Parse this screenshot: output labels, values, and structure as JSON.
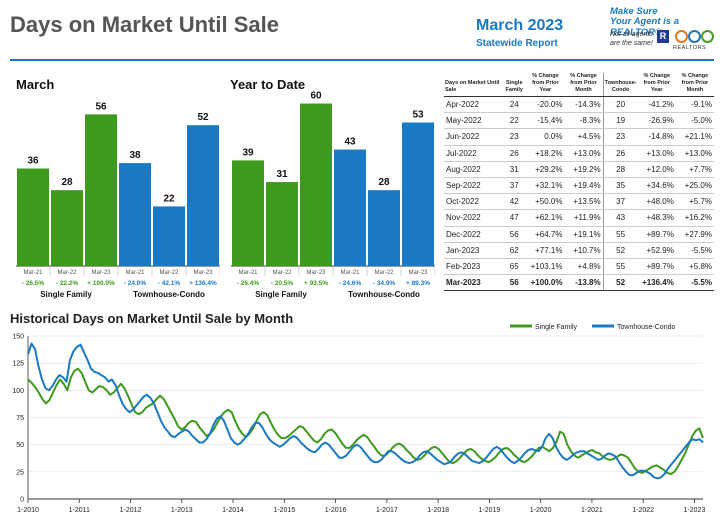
{
  "header": {
    "title": "Days on Market Until Sale",
    "month": "March 2023",
    "subtitle": "Statewide Report",
    "realtor_line1": "Make Sure",
    "realtor_line2": "Your Agent is a REALTOR®",
    "realtor_line3": "Not all agents",
    "realtor_line4": "are the same!",
    "logo_text": "REALTORS"
  },
  "sections": {
    "march": "March",
    "ytd": "Year to Date",
    "historical": "Historical Days on Market Until Sale by Month"
  },
  "colors": {
    "single_family": "#3d9a1c",
    "townhouse": "#1a79c3",
    "accent": "#1a79c3"
  },
  "chart_data": [
    {
      "type": "bar",
      "title": "March",
      "groups": [
        "Single Family",
        "Townhouse-Condo"
      ],
      "categories": [
        "Mar-21",
        "Mar-22",
        "Mar-23",
        "Mar-21",
        "Mar-22",
        "Mar-23"
      ],
      "values": [
        36,
        28,
        56,
        38,
        22,
        52
      ],
      "changes": [
        "- 26.5%",
        "- 22.2%",
        "+ 100.0%",
        "- 24.0%",
        "- 42.1%",
        "+ 136.4%"
      ],
      "ylim": [
        0,
        65
      ]
    },
    {
      "type": "bar",
      "title": "Year to Date",
      "groups": [
        "Single Family",
        "Townhouse-Condo"
      ],
      "categories": [
        "Mar-21",
        "Mar-22",
        "Mar-23",
        "Mar-21",
        "Mar-22",
        "Mar-23"
      ],
      "values": [
        39,
        31,
        60,
        43,
        28,
        53
      ],
      "changes": [
        "- 26.4%",
        "- 20.5%",
        "+ 93.5%",
        "- 24.6%",
        "- 34.9%",
        "+ 89.3%"
      ],
      "ylim": [
        0,
        65
      ]
    },
    {
      "type": "table",
      "headers": [
        "Days on Market Until Sale",
        "Single Family",
        "% Change from Prior Year",
        "% Change from Prior Month",
        "Townhouse-Condo",
        "% Change from Prior Year",
        "% Change from Prior Month"
      ],
      "rows": [
        [
          "Apr-2022",
          "24",
          "-20.0%",
          "-14.3%",
          "20",
          "-41.2%",
          "-9.1%"
        ],
        [
          "May-2022",
          "22",
          "-15.4%",
          "-8.3%",
          "19",
          "-26.9%",
          "-5.0%"
        ],
        [
          "Jun-2022",
          "23",
          "0.0%",
          "+4.5%",
          "23",
          "-14.8%",
          "+21.1%"
        ],
        [
          "Jul-2022",
          "26",
          "+18.2%",
          "+13.0%",
          "26",
          "+13.0%",
          "+13.0%"
        ],
        [
          "Aug-2022",
          "31",
          "+29.2%",
          "+19.2%",
          "28",
          "+12.0%",
          "+7.7%"
        ],
        [
          "Sep-2022",
          "37",
          "+32.1%",
          "+19.4%",
          "35",
          "+34.6%",
          "+25.0%"
        ],
        [
          "Oct-2022",
          "42",
          "+50.0%",
          "+13.5%",
          "37",
          "+48.0%",
          "+5.7%"
        ],
        [
          "Nov-2022",
          "47",
          "+62.1%",
          "+11.9%",
          "43",
          "+48.3%",
          "+16.2%"
        ],
        [
          "Dec-2022",
          "56",
          "+64.7%",
          "+19.1%",
          "55",
          "+89.7%",
          "+27.9%"
        ],
        [
          "Jan-2023",
          "62",
          "+77.1%",
          "+10.7%",
          "52",
          "+52.9%",
          "-5.5%"
        ],
        [
          "Feb-2023",
          "65",
          "+103.1%",
          "+4.8%",
          "55",
          "+89.7%",
          "+5.8%"
        ],
        [
          "Mar-2023",
          "56",
          "+100.0%",
          "-13.8%",
          "52",
          "+136.4%",
          "-5.5%"
        ]
      ]
    },
    {
      "type": "line",
      "title": "Historical Days on Market Until Sale by Month",
      "ylim": [
        0,
        150
      ],
      "yticks": [
        0,
        25,
        50,
        75,
        100,
        125,
        150
      ],
      "xticks": [
        "1-2010",
        "1-2011",
        "1-2012",
        "1-2013",
        "1-2014",
        "1-2015",
        "1-2016",
        "1-2017",
        "1-2018",
        "1-2019",
        "1-2020",
        "1-2021",
        "1-2022",
        "1-2023"
      ],
      "x_start": "1-2010",
      "legend": "top-right",
      "series": [
        {
          "name": "Single Family",
          "values": [
            110,
            107,
            103,
            98,
            92,
            88,
            91,
            98,
            105,
            110,
            106,
            100,
            112,
            118,
            120,
            116,
            108,
            100,
            98,
            101,
            104,
            103,
            100,
            96,
            98,
            102,
            106,
            102,
            95,
            87,
            80,
            78,
            80,
            84,
            86,
            88,
            92,
            95,
            92,
            86,
            80,
            74,
            67,
            64,
            66,
            70,
            72,
            71,
            66,
            62,
            58,
            60,
            64,
            70,
            76,
            80,
            82,
            80,
            72,
            65,
            60,
            57,
            60,
            65,
            72,
            78,
            80,
            77,
            70,
            64,
            59,
            56,
            56,
            58,
            61,
            64,
            67,
            66,
            62,
            58,
            54,
            52,
            55,
            60,
            63,
            64,
            61,
            56,
            51,
            47,
            47,
            50,
            54,
            57,
            59,
            57,
            52,
            48,
            43,
            40,
            40,
            43,
            47,
            50,
            51,
            49,
            45,
            42,
            38,
            36,
            37,
            40,
            44,
            47,
            48,
            46,
            42,
            38,
            34,
            33,
            35,
            38,
            42,
            45,
            46,
            44,
            40,
            37,
            35,
            34,
            36,
            39,
            43,
            46,
            47,
            45,
            41,
            38,
            35,
            34,
            36,
            39,
            43,
            47,
            48,
            46,
            44,
            47,
            53,
            62,
            60,
            50,
            44,
            40,
            38,
            40,
            42,
            44,
            45,
            43,
            42,
            39,
            37,
            36,
            37,
            39,
            41,
            40,
            38,
            33,
            28,
            25,
            24,
            26,
            28,
            30,
            31,
            29,
            27,
            24,
            23,
            25,
            30,
            36,
            42,
            50,
            58,
            63,
            65,
            56
          ]
        },
        {
          "name": "Townhouse-Condo",
          "values": [
            133,
            143,
            138,
            122,
            110,
            102,
            100,
            104,
            110,
            114,
            112,
            108,
            128,
            136,
            140,
            142,
            135,
            128,
            120,
            117,
            116,
            114,
            112,
            108,
            110,
            105,
            96,
            88,
            83,
            80,
            82,
            86,
            90,
            94,
            96,
            93,
            88,
            80,
            72,
            66,
            62,
            58,
            57,
            60,
            62,
            64,
            62,
            58,
            55,
            52,
            52,
            55,
            60,
            68,
            74,
            76,
            72,
            64,
            56,
            52,
            50,
            52,
            56,
            60,
            66,
            70,
            70,
            66,
            60,
            55,
            52,
            50,
            48,
            50,
            53,
            56,
            58,
            56,
            52,
            49,
            46,
            44,
            43,
            46,
            50,
            52,
            50,
            46,
            42,
            38,
            38,
            40,
            44,
            48,
            50,
            48,
            44,
            40,
            36,
            34,
            34,
            36,
            40,
            44,
            44,
            42,
            39,
            36,
            34,
            33,
            34,
            36,
            40,
            43,
            44,
            42,
            39,
            36,
            34,
            32,
            33,
            35,
            39,
            42,
            43,
            41,
            38,
            35,
            34,
            33,
            35,
            38,
            42,
            46,
            48,
            46,
            42,
            38,
            35,
            33,
            35,
            38,
            42,
            45,
            46,
            45,
            44,
            48,
            56,
            60,
            56,
            48,
            42,
            38,
            36,
            38,
            41,
            43,
            44,
            44,
            42,
            40,
            38,
            36,
            37,
            40,
            42,
            41,
            39,
            34,
            29,
            25,
            22,
            22,
            24,
            26,
            26,
            25,
            23,
            20,
            19,
            20,
            23,
            28,
            32,
            36,
            40,
            44,
            48,
            52,
            55,
            54,
            55,
            52
          ]
        }
      ]
    }
  ]
}
